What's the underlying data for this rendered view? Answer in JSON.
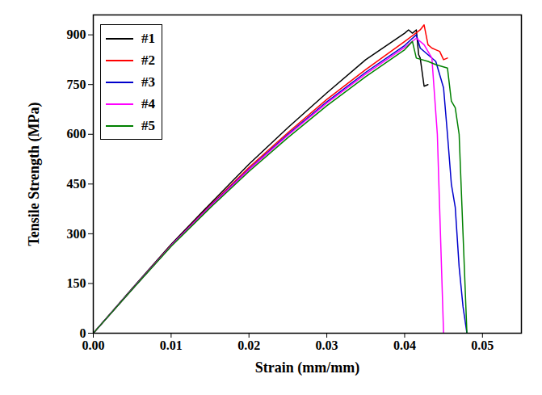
{
  "chart_data": {
    "type": "line",
    "x_label": "Strain (mm/mm)",
    "y_label": "Tensile Strength (MPa)",
    "xlim": [
      0,
      0.055
    ],
    "xticks": [
      {
        "value": 0,
        "label": "0.00"
      },
      {
        "value": 0.01,
        "label": "0.01"
      },
      {
        "value": 0.02,
        "label": "0.02"
      },
      {
        "value": 0.03,
        "label": "0.03"
      },
      {
        "value": 0.04,
        "label": "0.04"
      },
      {
        "value": 0.05,
        "label": "0.05"
      }
    ],
    "ylim": [
      0,
      960
    ],
    "yticks": [
      0,
      150,
      300,
      450,
      600,
      750,
      900
    ],
    "grid": false,
    "legend": "top-left",
    "series": [
      {
        "name": "#1",
        "color": "#000000",
        "x": [
          0,
          0.005,
          0.01,
          0.015,
          0.02,
          0.025,
          0.03,
          0.035,
          0.04,
          0.0405,
          0.041,
          0.0415,
          0.0418,
          0.042,
          0.0425,
          0.043
        ],
        "values": [
          0,
          135,
          268,
          390,
          510,
          620,
          725,
          825,
          905,
          915,
          905,
          915,
          840,
          830,
          745,
          750
        ]
      },
      {
        "name": "#2",
        "color": "#ff0000",
        "x": [
          0,
          0.005,
          0.01,
          0.015,
          0.02,
          0.025,
          0.03,
          0.035,
          0.04,
          0.042,
          0.0425,
          0.043,
          0.0435,
          0.044,
          0.0445,
          0.045,
          0.0455
        ],
        "values": [
          0,
          133,
          265,
          385,
          500,
          605,
          705,
          795,
          880,
          915,
          930,
          870,
          860,
          855,
          850,
          825,
          830
        ]
      },
      {
        "name": "#3",
        "color": "#0000cc",
        "x": [
          0,
          0.005,
          0.01,
          0.015,
          0.02,
          0.025,
          0.03,
          0.035,
          0.04,
          0.0415,
          0.042,
          0.043,
          0.044,
          0.045,
          0.0455,
          0.046,
          0.0465,
          0.047,
          0.0475,
          0.048
        ],
        "values": [
          0,
          133,
          264,
          383,
          495,
          600,
          698,
          787,
          868,
          900,
          860,
          840,
          820,
          740,
          600,
          450,
          380,
          200,
          80,
          0
        ]
      },
      {
        "name": "#4",
        "color": "#ff00ff",
        "x": [
          0,
          0.005,
          0.01,
          0.015,
          0.02,
          0.025,
          0.03,
          0.035,
          0.04,
          0.0415,
          0.0425,
          0.0435,
          0.0442,
          0.0448,
          0.045
        ],
        "values": [
          0,
          133,
          264,
          382,
          493,
          597,
          694,
          782,
          862,
          890,
          870,
          830,
          600,
          150,
          0
        ]
      },
      {
        "name": "#5",
        "color": "#008000",
        "x": [
          0,
          0.005,
          0.01,
          0.015,
          0.02,
          0.025,
          0.03,
          0.035,
          0.04,
          0.041,
          0.0415,
          0.043,
          0.044,
          0.0455,
          0.046,
          0.0465,
          0.047,
          0.0475,
          0.048
        ],
        "values": [
          0,
          132,
          262,
          378,
          488,
          590,
          686,
          774,
          855,
          880,
          830,
          820,
          810,
          800,
          700,
          680,
          600,
          300,
          0
        ]
      }
    ]
  }
}
